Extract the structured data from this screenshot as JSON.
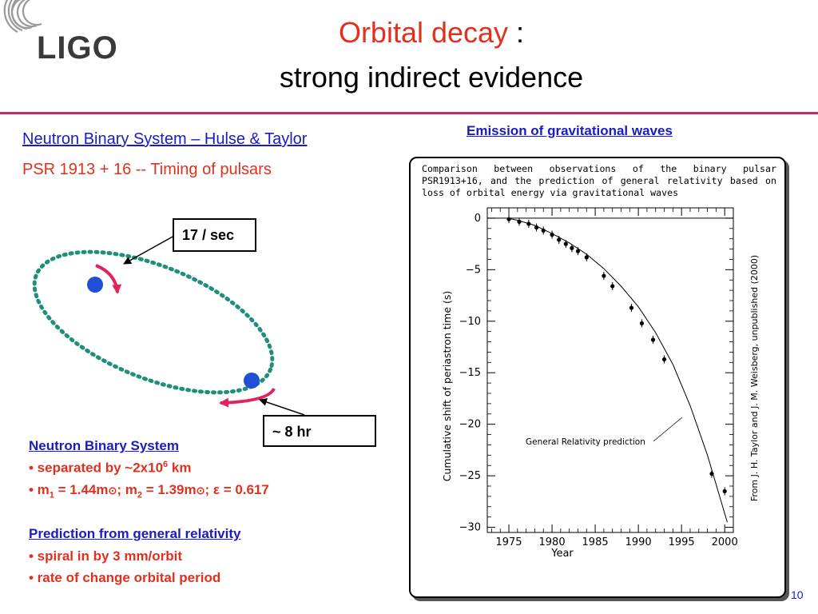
{
  "header": {
    "logo_text": "LIGO",
    "title_red": "Orbital decay",
    "title_colon": " :",
    "title_line2": "strong indirect evidence"
  },
  "left": {
    "system_link": "Neutron Binary System – Hulse & Taylor",
    "psr_line": "PSR 1913 + 16  -- Timing of pulsars",
    "callout_top": "17 / sec",
    "callout_bottom": "~ 8 hr"
  },
  "neutron_section": {
    "title": "Neutron Binary System",
    "b1_prefix": "• separated by ~2x10",
    "b1_sup": "6",
    "b1_suffix": " km",
    "b2_m1": "• m",
    "b2_sub1": "1",
    "b2_mid1": " = 1.44m",
    "b2_sun1": "⊙",
    "b2_m2": "; m",
    "b2_sub2": "2",
    "b2_mid2": " = 1.39m",
    "b2_sun2": "⊙",
    "b2_end": "; ε = 0.617"
  },
  "prediction_section": {
    "title": "Prediction from general relativity",
    "b1": "• spiral in by 3 mm/orbit",
    "b2": "• rate of change orbital period"
  },
  "figure": {
    "heading": "Emission of gravitational waves",
    "caption": "Comparison between observations of the binary pulsar PSR1913+16, and the prediction of general relativity based on loss of orbital energy via gravitational waves",
    "ylabel": "Cumulative shift of periastron time (s)",
    "xlabel": "Year",
    "curve_label": "General Relativity prediction",
    "credit": "From J. H. Taylor and J. M. Weisberg, unpublished (2000)"
  },
  "chart_data": {
    "type": "scatter",
    "title": "",
    "xlabel": "Year",
    "ylabel": "Cumulative shift of periastron time (s)",
    "xlim": [
      1972.5,
      2001
    ],
    "ylim": [
      -30.5,
      1
    ],
    "xticks": [
      1975,
      1980,
      1985,
      1990,
      1995,
      2000
    ],
    "yticks": [
      0,
      -5,
      -10,
      -15,
      -20,
      -25,
      -30
    ],
    "grid": false,
    "series": [
      {
        "name": "General Relativity prediction",
        "kind": "line",
        "x": [
          1974.8,
          1976,
          1978,
          1980,
          1982,
          1984,
          1986,
          1988,
          1990,
          1992,
          1994,
          1996,
          1998,
          2000.3
        ],
        "y": [
          0,
          -0.2,
          -0.7,
          -1.5,
          -2.4,
          -3.5,
          -4.9,
          -6.6,
          -8.6,
          -11.1,
          -14.2,
          -18.2,
          -23.0,
          -29.5
        ]
      },
      {
        "name": "Observations",
        "kind": "points",
        "x": [
          1975.0,
          1976.2,
          1977.3,
          1978.2,
          1979.0,
          1980.0,
          1980.8,
          1981.6,
          1982.3,
          1983.0,
          1984.0,
          1986.0,
          1987.0,
          1989.2,
          1990.4,
          1991.7,
          1993.0,
          1998.5,
          2000.0
        ],
        "y": [
          -0.1,
          -0.35,
          -0.55,
          -0.9,
          -1.2,
          -1.6,
          -2.1,
          -2.5,
          -2.9,
          -3.2,
          -3.8,
          -5.6,
          -6.6,
          -8.7,
          -10.2,
          -11.8,
          -13.7,
          -24.8,
          -26.5
        ]
      }
    ]
  },
  "page_number": "10",
  "colors": {
    "title_red": "#e0301e",
    "link_blue": "#1a1ac8",
    "orbit_teal": "#1f8f7a",
    "star_blue": "#1f4fd6",
    "arrow_pink": "#e0245e",
    "divider": "#c02c6a"
  }
}
